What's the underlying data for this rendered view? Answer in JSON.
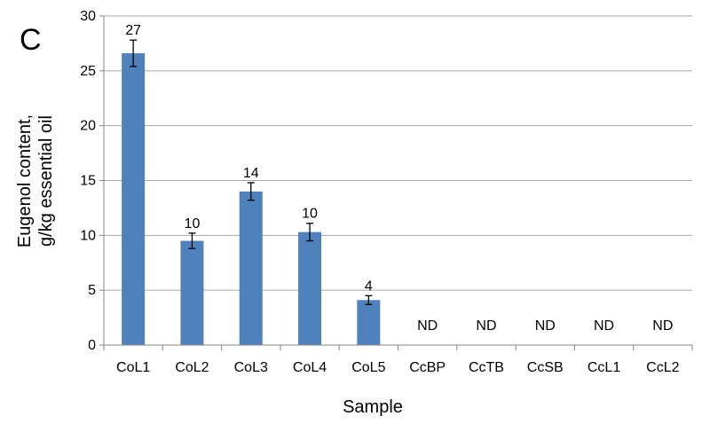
{
  "chart_data": {
    "type": "bar",
    "panel_label": "C",
    "categories": [
      "CoL1",
      "CoL2",
      "CoL3",
      "CoL4",
      "CoL5",
      "CcBP",
      "CcTB",
      "CcSB",
      "CcL1",
      "CcL2"
    ],
    "values": [
      26.6,
      9.5,
      14.0,
      10.3,
      4.1,
      null,
      null,
      null,
      null,
      null
    ],
    "error": [
      1.2,
      0.7,
      0.8,
      0.8,
      0.4,
      null,
      null,
      null,
      null,
      null
    ],
    "data_labels": [
      "27",
      "10",
      "14",
      "10",
      "4",
      "ND",
      "ND",
      "ND",
      "ND",
      "ND"
    ],
    "xlabel": "Sample",
    "ylabel_lines": [
      "Eugenol content,",
      "g/kg essential oil"
    ],
    "ylim": [
      0,
      30
    ],
    "yticks": [
      0,
      5,
      10,
      15,
      20,
      25,
      30
    ],
    "grid": true,
    "legend": "none",
    "bar_color": "#4F81BD",
    "grid_color": "#A6A6A6"
  }
}
